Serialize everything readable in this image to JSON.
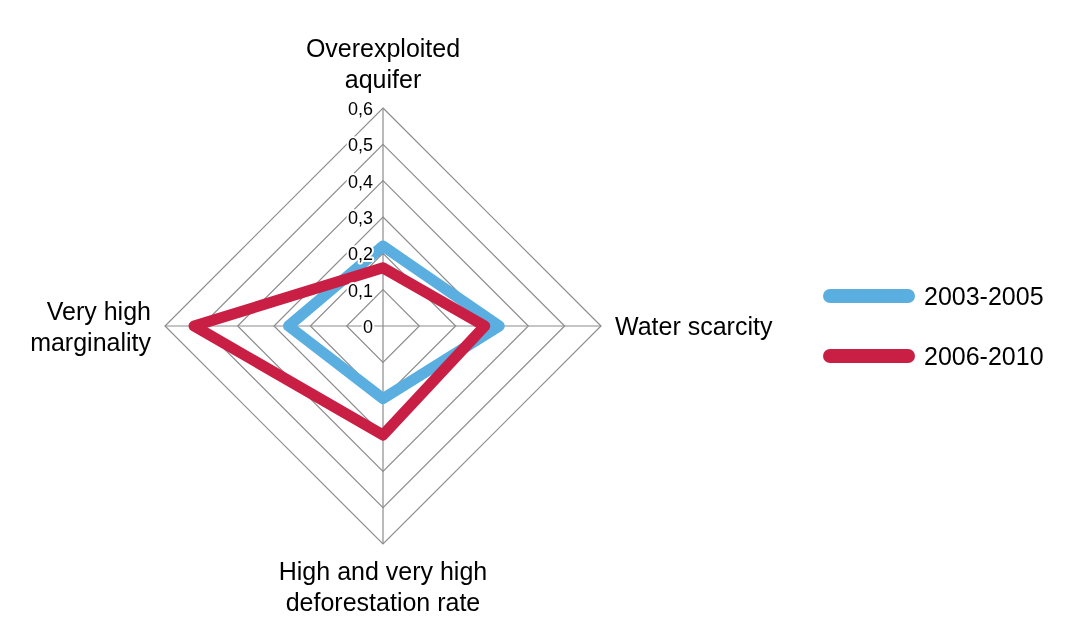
{
  "chart_data": {
    "type": "radar",
    "categories": [
      "Overexploited aquifer",
      "Water scarcity",
      "High and very high deforestation rate",
      "Very high marginality"
    ],
    "series": [
      {
        "name": "2003-2005",
        "color": "#5aafe0",
        "values": [
          0.22,
          0.32,
          0.2,
          0.26
        ]
      },
      {
        "name": "2006-2010",
        "color": "#c91f45",
        "values": [
          0.16,
          0.28,
          0.3,
          0.52
        ]
      }
    ],
    "ylim": [
      0,
      0.6
    ],
    "yticks": [
      {
        "value": 0,
        "label": "0"
      },
      {
        "value": 0.1,
        "label": "0,1"
      },
      {
        "value": 0.2,
        "label": "0,2"
      },
      {
        "value": 0.3,
        "label": "0,3"
      },
      {
        "value": 0.4,
        "label": "0,4"
      },
      {
        "value": 0.5,
        "label": "0,5"
      },
      {
        "value": 0.6,
        "label": "0,6"
      }
    ],
    "grid": true,
    "legend": "right"
  }
}
